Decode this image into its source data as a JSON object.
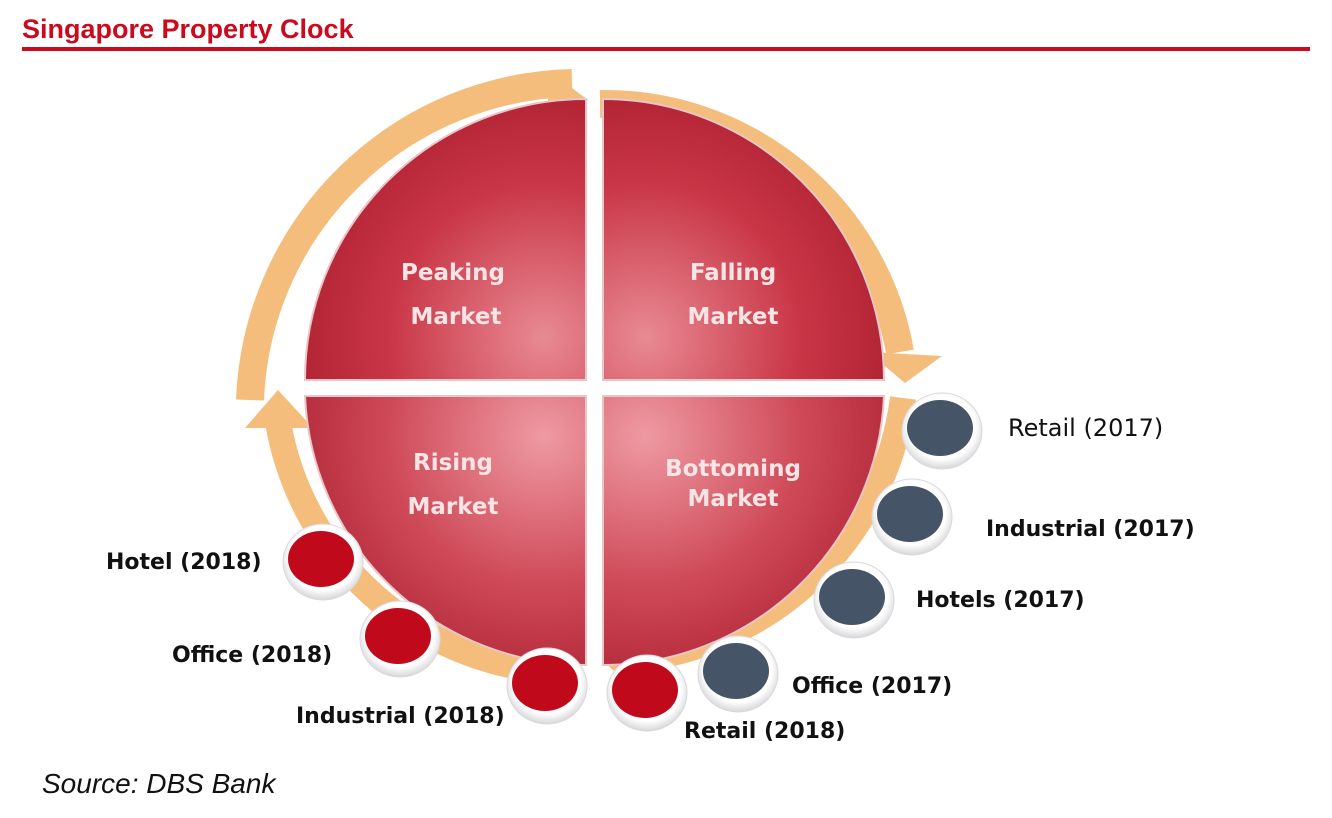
{
  "title": "Singapore Property Clock",
  "source": "Source: DBS Bank",
  "quadrants": {
    "peaking": {
      "line1": "Peaking",
      "line2": "Market"
    },
    "falling": {
      "line1": "Falling",
      "line2": "Market"
    },
    "rising": {
      "line1": "Rising",
      "line2": "Market"
    },
    "bottoming": {
      "line1": "Bottoming",
      "line2": "Market"
    }
  },
  "markers": [
    {
      "label": "Retail (2017)",
      "color": "#465468"
    },
    {
      "label": "Industrial (2017)",
      "color": "#465468"
    },
    {
      "label": "Hotels (2017)",
      "color": "#465468"
    },
    {
      "label": "Office (2017)",
      "color": "#465468"
    },
    {
      "label": "Retail (2018)",
      "color": "#c0091a"
    },
    {
      "label": "Industrial (2018)",
      "color": "#c0091a"
    },
    {
      "label": "Office (2018)",
      "color": "#c0091a"
    },
    {
      "label": "Hotel (2018)",
      "color": "#c0091a"
    }
  ],
  "colors": {
    "accent": "#cc0a1e",
    "quadrant": "#c8394a",
    "arrow": "#f5bd7c",
    "year2017": "#465468",
    "year2018": "#c0091a"
  }
}
